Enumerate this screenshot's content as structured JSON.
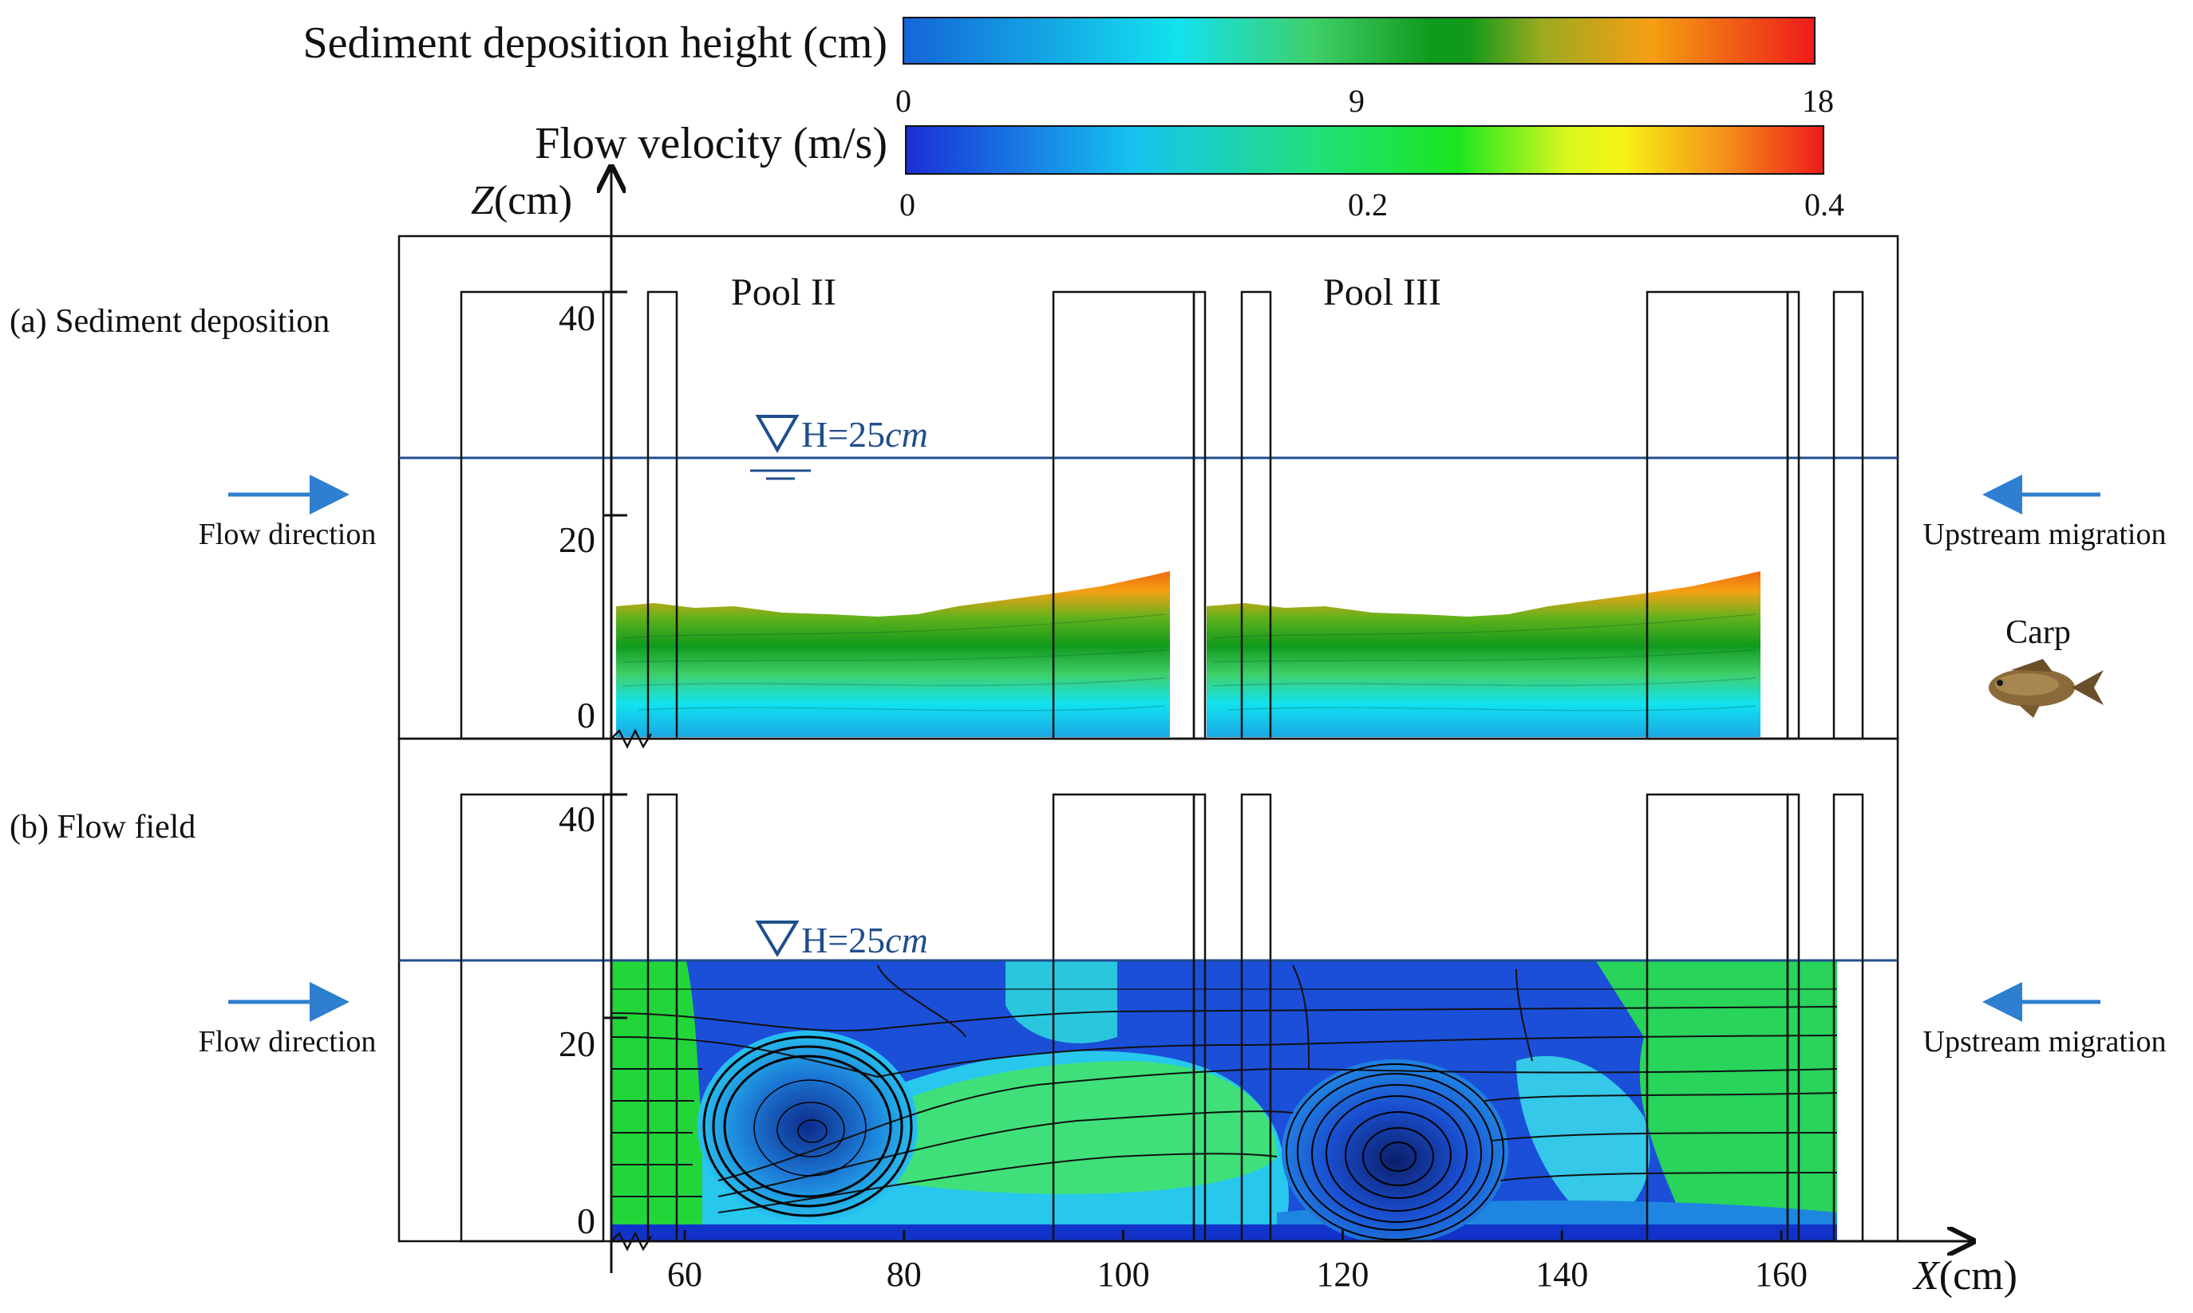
{
  "colorbars": {
    "sediment": {
      "label": "Sediment deposition height (cm)",
      "ticks": [
        "0",
        "9",
        "18"
      ],
      "stops": [
        {
          "offset": 0,
          "color": "#1565d8"
        },
        {
          "offset": 0.3,
          "color": "#12e2ef"
        },
        {
          "offset": 0.45,
          "color": "#3fcf6a"
        },
        {
          "offset": 0.58,
          "color": "#109a1c"
        },
        {
          "offset": 0.62,
          "color": "#119a1a"
        },
        {
          "offset": 0.7,
          "color": "#9aaa20"
        },
        {
          "offset": 0.82,
          "color": "#f5a012"
        },
        {
          "offset": 1,
          "color": "#ee1a1a"
        }
      ]
    },
    "velocity": {
      "label": "Flow velocity (m/s)",
      "ticks": [
        "0",
        "0.2",
        "0.4"
      ],
      "stops": [
        {
          "offset": 0,
          "color": "#1a2fd6"
        },
        {
          "offset": 0.25,
          "color": "#16c4f0"
        },
        {
          "offset": 0.45,
          "color": "#22e07a"
        },
        {
          "offset": 0.6,
          "color": "#19e61e"
        },
        {
          "offset": 0.72,
          "color": "#d9f71e"
        },
        {
          "offset": 0.78,
          "color": "#f7f415"
        },
        {
          "offset": 0.9,
          "color": "#f5881a"
        },
        {
          "offset": 1,
          "color": "#ee1a1a"
        }
      ]
    }
  },
  "axes": {
    "z_label_italic": "Z",
    "z_label_unit": "(cm)",
    "x_label_italic": "X",
    "x_label_unit": "(cm)",
    "z_ticks": [
      "0",
      "20",
      "40"
    ],
    "x_ticks": [
      "60",
      "80",
      "100",
      "120",
      "140",
      "160"
    ]
  },
  "panels": {
    "a": {
      "label": "(a) Sediment deposition"
    },
    "b": {
      "label": "(b) Flow field"
    }
  },
  "pools": [
    "Pool II",
    "Pool III"
  ],
  "water_level": {
    "prefix": "H=25",
    "unit_italic": "cm"
  },
  "annotations": {
    "flow_direction": "Flow direction",
    "upstream_migration": "Upstream migration",
    "carp": "Carp"
  },
  "colors": {
    "water_line": "#1f4e8c",
    "arrow": "#2f7fd0",
    "outline": "#111111"
  }
}
